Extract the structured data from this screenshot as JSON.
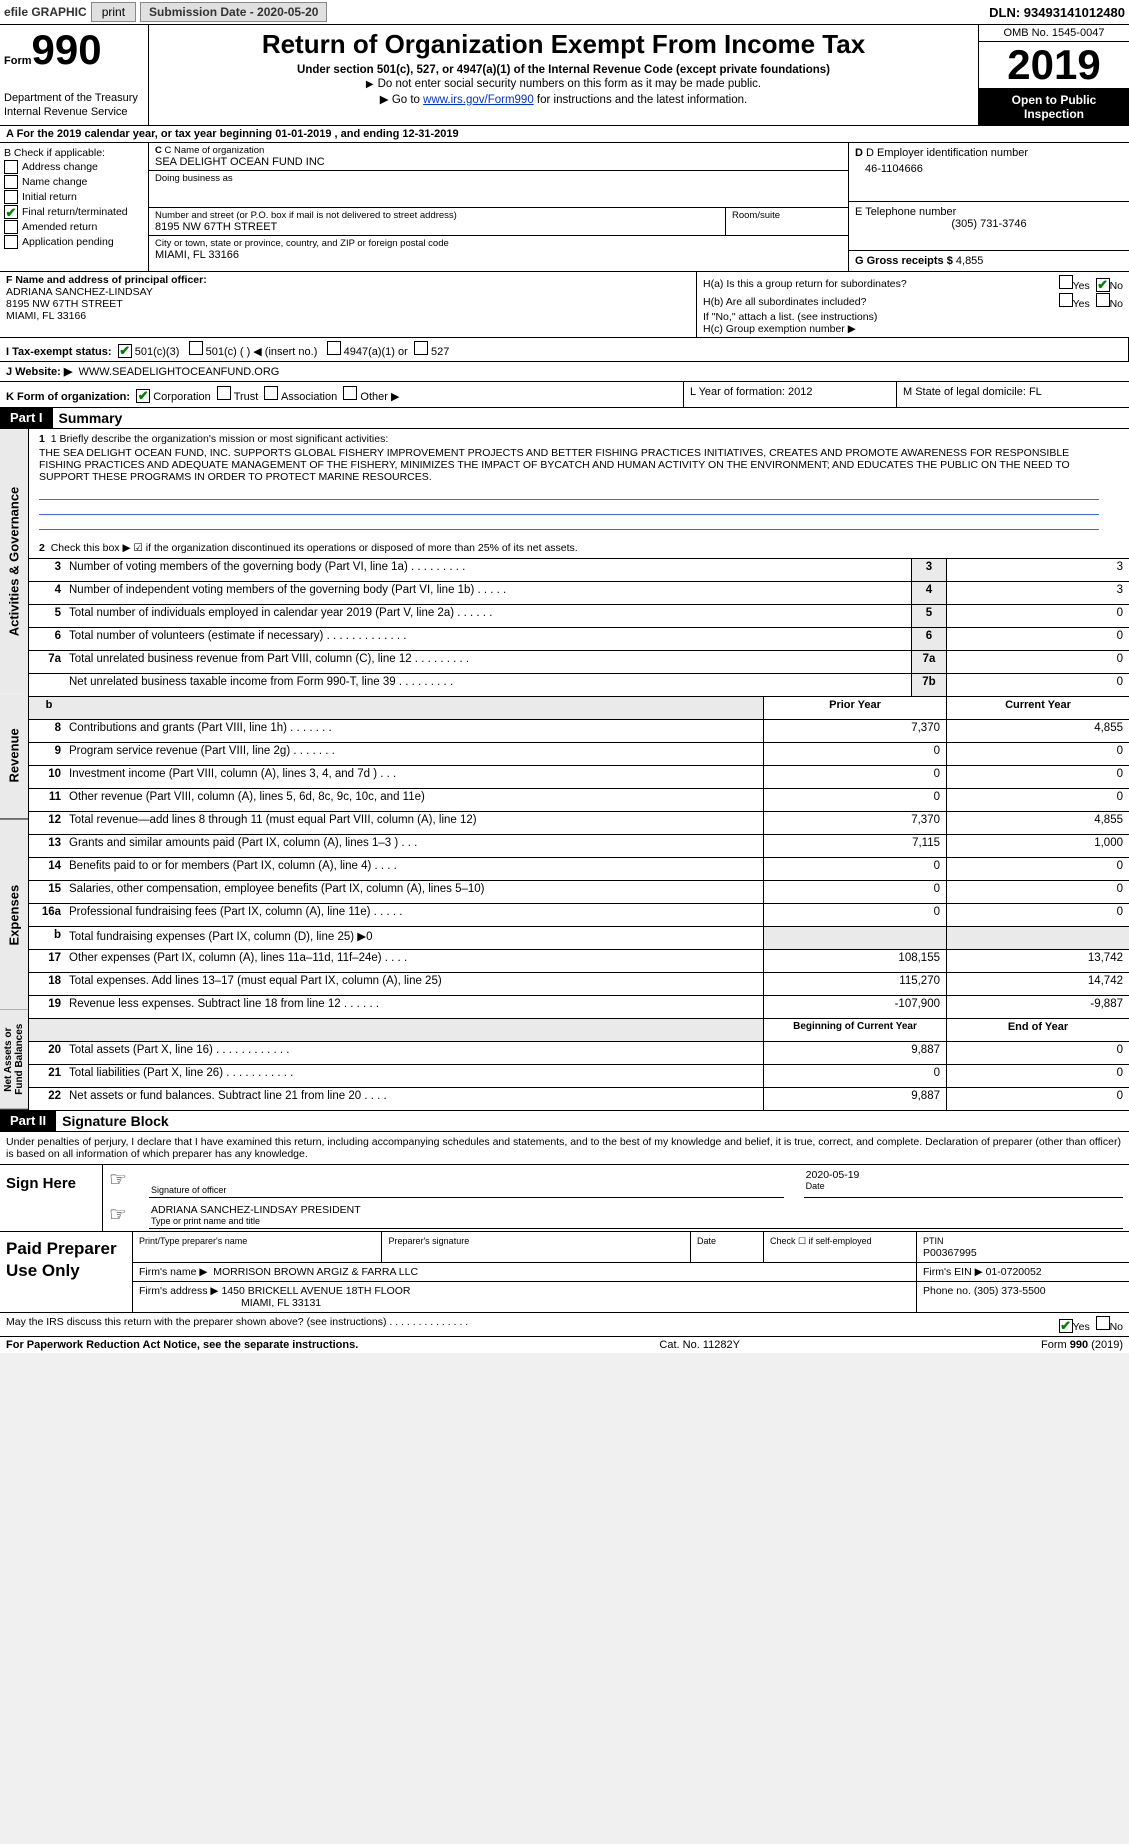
{
  "topbar": {
    "efile_label": "efile GRAPHIC",
    "print_btn": "print",
    "submission_label": "Submission Date - 2020-05-20",
    "dln": "DLN: 93493141012480"
  },
  "header": {
    "form_prefix": "Form",
    "form_number": "990",
    "dept": "Department of the Treasury\nInternal Revenue Service",
    "title": "Return of Organization Exempt From Income Tax",
    "subtitle": "Under section 501(c), 527, or 4947(a)(1) of the Internal Revenue Code (except private foundations)",
    "instr1": "Do not enter social security numbers on this form as it may be made public.",
    "instr2_pre": "Go to ",
    "instr2_link": "www.irs.gov/Form990",
    "instr2_post": " for instructions and the latest information.",
    "omb": "OMB No. 1545-0047",
    "year": "2019",
    "open_public": "Open to Public Inspection"
  },
  "row_a_text": "A For the 2019 calendar year, or tax year beginning 01-01-2019     , and ending 12-31-2019",
  "section_b": {
    "title": "B Check if applicable:",
    "items": [
      {
        "label": "Address change",
        "checked": false
      },
      {
        "label": "Name change",
        "checked": false
      },
      {
        "label": "Initial return",
        "checked": false
      },
      {
        "label": "Final return/terminated",
        "checked": true
      },
      {
        "label": "Amended return",
        "checked": false
      },
      {
        "label": "Application pending",
        "checked": false
      }
    ]
  },
  "section_c": {
    "name_label": "C Name of organization",
    "name": "SEA DELIGHT OCEAN FUND INC",
    "dba_label": "Doing business as",
    "dba": "",
    "addr_label": "Number and street (or P.O. box if mail is not delivered to street address)",
    "addr": "8195 NW 67TH STREET",
    "room_label": "Room/suite",
    "city_label": "City or town, state or province, country, and ZIP or foreign postal code",
    "city": "MIAMI, FL  33166"
  },
  "section_d": {
    "ein_label": "D Employer identification number",
    "ein": "46-1104666",
    "tel_label": "E Telephone number",
    "tel": "(305) 731-3746",
    "receipts_label": "G Gross receipts $",
    "receipts": "4,855"
  },
  "section_f": {
    "label": "F  Name and address of principal officer:",
    "name": "ADRIANA SANCHEZ-LINDSAY",
    "addr1": "8195 NW 67TH STREET",
    "addr2": "MIAMI, FL  33166"
  },
  "section_h": {
    "ha_label": "H(a)  Is this a group return for subordinates?",
    "ha_yes": false,
    "ha_no": true,
    "hb_label": "H(b)  Are all subordinates included?",
    "hb_note": "If \"No,\" attach a list. (see instructions)",
    "hc_label": "H(c)  Group exemption number ▶"
  },
  "row_i": {
    "label": "I   Tax-exempt status:",
    "c3": true,
    "c3_label": "501(c)(3)",
    "c_label": "501(c) (  ) ◀ (insert no.)",
    "a1_label": "4947(a)(1) or",
    "s527_label": "527"
  },
  "row_j": {
    "label": "J   Website: ▶",
    "value": "WWW.SEADELIGHTOCEANFUND.ORG"
  },
  "row_k": {
    "label": "K Form of organization:",
    "corp": true,
    "corp_label": "Corporation",
    "trust_label": "Trust",
    "assoc_label": "Association",
    "other_label": "Other ▶"
  },
  "row_l": "L Year of formation: 2012",
  "row_m": "M State of legal domicile: FL",
  "part1_label": "Part I",
  "part1_title": "Summary",
  "mission": {
    "line1_label": "1   Briefly describe the organization's mission or most significant activities:",
    "text": "THE SEA DELIGHT OCEAN FUND, INC. SUPPORTS GLOBAL FISHERY IMPROVEMENT PROJECTS AND BETTER FISHING PRACTICES INITIATIVES, CREATES AND PROMOTE AWARENESS FOR RESPONSIBLE FISHING PRACTICES AND ADEQUATE MANAGEMENT OF THE FISHERY, MINIMIZES THE IMPACT OF BYCATCH AND HUMAN ACTIVITY ON THE ENVIRONMENT; AND EDUCATES THE PUBLIC ON THE NEED TO SUPPORT THESE PROGRAMS IN ORDER TO PROTECT MARINE RESOURCES."
  },
  "line2": "Check this box ▶ ☑ if the organization discontinued its operations or disposed of more than 25% of its net assets.",
  "gov_rows": [
    {
      "n": "3",
      "desc": "Number of voting members of the governing body (Part VI, line 1a)   .     .     .     .     .     .     .     .     .",
      "box": "3",
      "val": "3"
    },
    {
      "n": "4",
      "desc": "Number of independent voting members of the governing body (Part VI, line 1b)    .     .     .     .     .",
      "box": "4",
      "val": "3"
    },
    {
      "n": "5",
      "desc": "Total number of individuals employed in calendar year 2019 (Part V, line 2a)   .     .     .     .     .     .",
      "box": "5",
      "val": "0"
    },
    {
      "n": "6",
      "desc": "Total number of volunteers (estimate if necessary)    .     .     .     .     .     .     .     .     .     .     .     .     .",
      "box": "6",
      "val": "0"
    },
    {
      "n": "7a",
      "desc": "Total unrelated business revenue from Part VIII, column (C), line 12   .     .     .     .     .     .     .     .     .",
      "box": "7a",
      "val": "0"
    },
    {
      "n": "",
      "desc": "Net unrelated business taxable income from Form 990-T, line 39    .     .     .     .     .     .     .     .     .",
      "box": "7b",
      "val": "0"
    }
  ],
  "rev_header": {
    "c1": "Prior Year",
    "c2": "Current Year"
  },
  "rev_rows": [
    {
      "n": "8",
      "desc": "Contributions and grants (Part VIII, line 1h)   .     .     .     .     .     .     .",
      "v1": "7,370",
      "v2": "4,855"
    },
    {
      "n": "9",
      "desc": "Program service revenue (Part VIII, line 2g)    .     .     .     .     .     .     .",
      "v1": "0",
      "v2": "0"
    },
    {
      "n": "10",
      "desc": "Investment income (Part VIII, column (A), lines 3, 4, and 7d )   .     .     .",
      "v1": "0",
      "v2": "0"
    },
    {
      "n": "11",
      "desc": "Other revenue (Part VIII, column (A), lines 5, 6d, 8c, 9c, 10c, and 11e)",
      "v1": "0",
      "v2": "0"
    },
    {
      "n": "12",
      "desc": "Total revenue—add lines 8 through 11 (must equal Part VIII, column (A), line 12)",
      "v1": "7,370",
      "v2": "4,855"
    }
  ],
  "exp_rows": [
    {
      "n": "13",
      "desc": "Grants and similar amounts paid (Part IX, column (A), lines 1–3 )    .     .     .",
      "v1": "7,115",
      "v2": "1,000"
    },
    {
      "n": "14",
      "desc": "Benefits paid to or for members (Part IX, column (A), line 4)    .     .     .     .",
      "v1": "0",
      "v2": "0"
    },
    {
      "n": "15",
      "desc": "Salaries, other compensation, employee benefits (Part IX, column (A), lines 5–10)",
      "v1": "0",
      "v2": "0"
    },
    {
      "n": "16a",
      "desc": "Professional fundraising fees (Part IX, column (A), line 11e)   .     .     .     .     .",
      "v1": "0",
      "v2": "0"
    },
    {
      "n": "b",
      "desc": "Total fundraising expenses (Part IX, column (D), line 25) ▶0",
      "v1": "",
      "v2": "",
      "shade": true
    },
    {
      "n": "17",
      "desc": "Other expenses (Part IX, column (A), lines 11a–11d, 11f–24e)   .     .     .     .",
      "v1": "108,155",
      "v2": "13,742"
    },
    {
      "n": "18",
      "desc": "Total expenses. Add lines 13–17 (must equal Part IX, column (A), line 25)",
      "v1": "115,270",
      "v2": "14,742"
    },
    {
      "n": "19",
      "desc": "Revenue less expenses. Subtract line 18 from line 12    .     .     .     .     .     .",
      "v1": "-107,900",
      "v2": "-9,887"
    }
  ],
  "na_header": {
    "c1": "Beginning of Current Year",
    "c2": "End of Year"
  },
  "na_rows": [
    {
      "n": "20",
      "desc": "Total assets (Part X, line 16)    .     .     .     .     .     .     .     .     .     .     .     .",
      "v1": "9,887",
      "v2": "0"
    },
    {
      "n": "21",
      "desc": "Total liabilities (Part X, line 26)   .     .     .     .     .     .     .     .     .     .     .",
      "v1": "0",
      "v2": "0"
    },
    {
      "n": "22",
      "desc": "Net assets or fund balances. Subtract line 21 from line 20    .     .     .     .",
      "v1": "9,887",
      "v2": "0"
    }
  ],
  "part2_label": "Part II",
  "part2_title": "Signature Block",
  "sig": {
    "declaration": "Under penalties of perjury, I declare that I have examined this return, including accompanying schedules and statements, and to the best of my knowledge and belief, it is true, correct, and complete. Declaration of preparer (other than officer) is based on all information of which preparer has any knowledge.",
    "sign_here": "Sign Here",
    "sig_officer": "Signature of officer",
    "date": "2020-05-19",
    "date_lbl": "Date",
    "name_title": "ADRIANA SANCHEZ-LINDSAY PRESIDENT",
    "type_lbl": "Type or print name and title"
  },
  "prep": {
    "label": "Paid Preparer Use Only",
    "print_lbl": "Print/Type preparer's name",
    "sig_lbl": "Preparer's signature",
    "date_lbl": "Date",
    "check_lbl": "Check ☐ if self-employed",
    "ptin_lbl": "PTIN",
    "ptin": "P00367995",
    "firm_name_lbl": "Firm's name     ▶",
    "firm_name": "MORRISON BROWN ARGIZ & FARRA LLC",
    "firm_ein_lbl": "Firm's EIN ▶",
    "firm_ein": "01-0720052",
    "firm_addr_lbl": "Firm's address ▶",
    "firm_addr1": "1450 BRICKELL AVENUE 18TH FLOOR",
    "firm_addr2": "MIAMI, FL  33131",
    "phone_lbl": "Phone no.",
    "phone": "(305) 373-5500"
  },
  "discuss": {
    "text": "May the IRS discuss this return with the preparer shown above? (see instructions)    .     .     .     .     .     .     .     .     .     .     .     .     .     .",
    "yes": true
  },
  "footer": {
    "left": "For Paperwork Reduction Act Notice, see the separate instructions.",
    "center": "Cat. No. 11282Y",
    "right_pre": "Form ",
    "right_bold": "990",
    "right_post": " (2019)"
  },
  "side_labels": {
    "gov": "Activities & Governance",
    "rev": "Revenue",
    "exp": "Expenses",
    "na": "Net Assets or Fund Balances"
  }
}
